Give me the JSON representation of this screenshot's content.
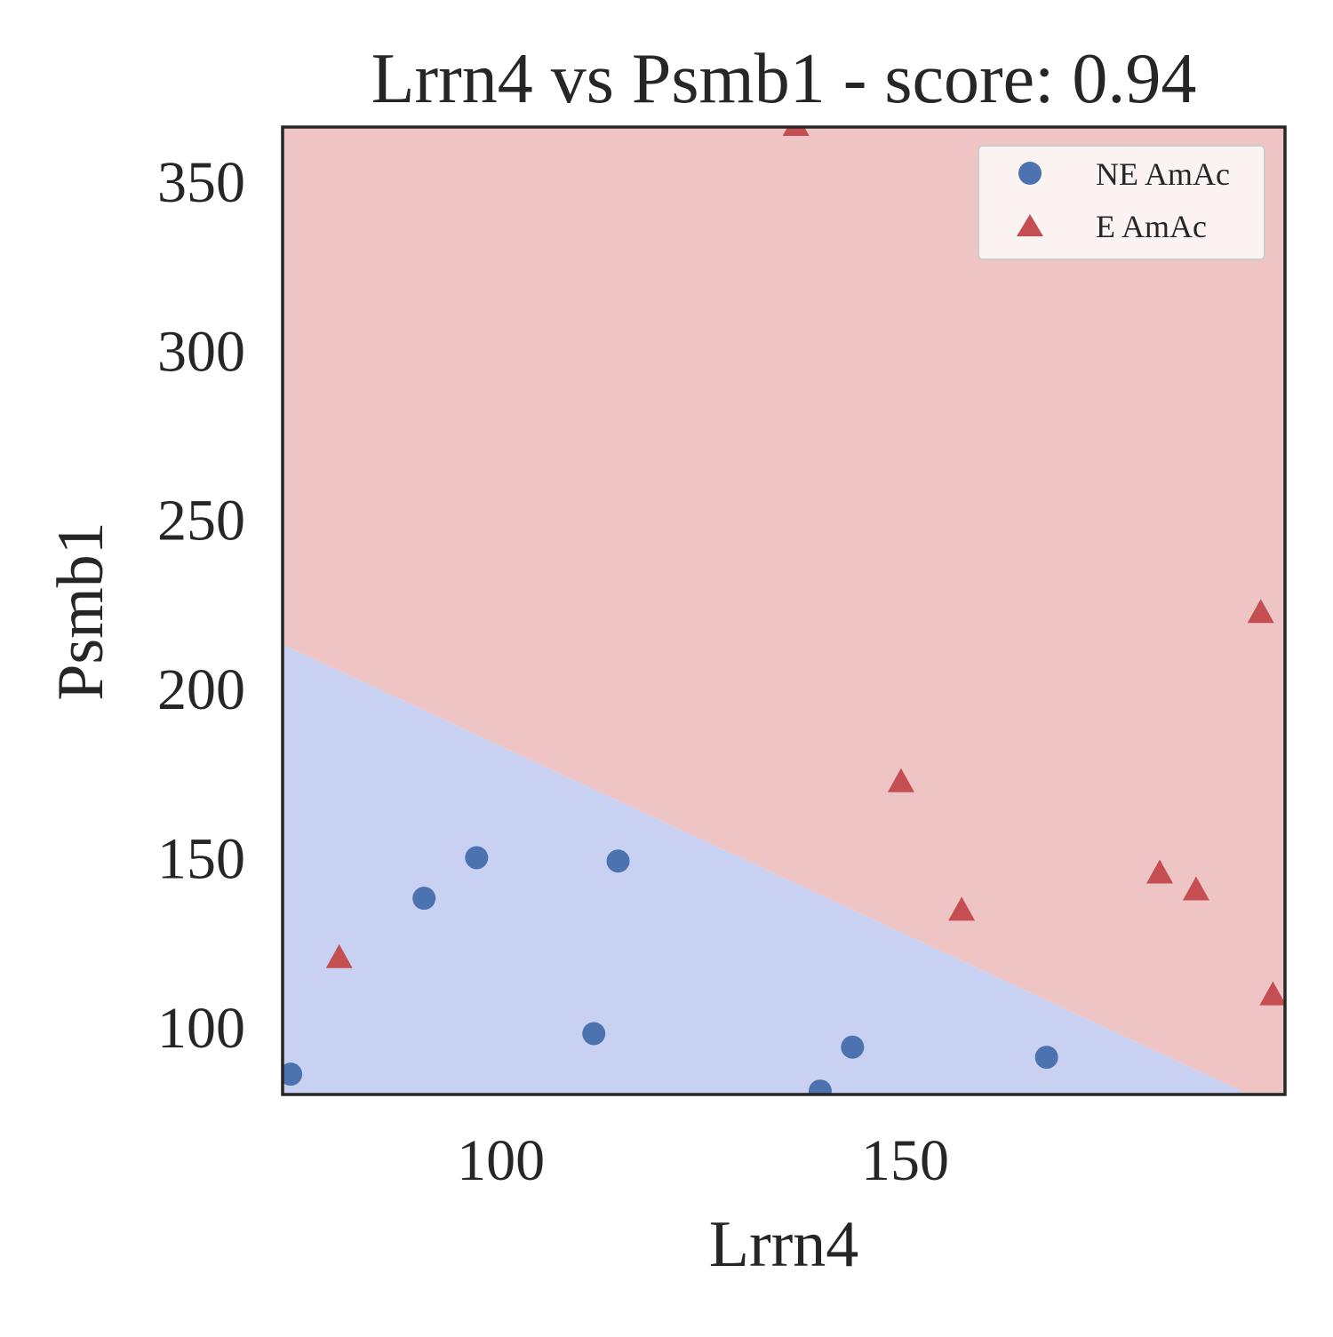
{
  "chart_data": {
    "type": "scatter",
    "title": "Lrrn4 vs Psmb1 - score: 0.94",
    "xlabel": "Lrrn4",
    "ylabel": "Psmb1",
    "xlim": [
      73,
      197
    ],
    "ylim": [
      80,
      366
    ],
    "xticks": [
      100,
      150
    ],
    "yticks": [
      100,
      150,
      200,
      250,
      300,
      350
    ],
    "grid": false,
    "legend_position": "top-right",
    "decision_boundary": {
      "x": [
        73,
        197
      ],
      "y": [
        213,
        75
      ]
    },
    "regions": [
      {
        "name": "NE AmAc",
        "color": "#c9d1f2"
      },
      {
        "name": "E AmAc",
        "color": "#eec5c4"
      }
    ],
    "series": [
      {
        "name": "NE AmAc",
        "marker": "circle",
        "color": "#4c72b0",
        "points": [
          [
            74,
            86
          ],
          [
            90.5,
            138
          ],
          [
            97,
            150
          ],
          [
            111.5,
            98
          ],
          [
            114.5,
            149
          ],
          [
            139.5,
            81
          ],
          [
            143.5,
            94
          ],
          [
            167.5,
            91
          ]
        ]
      },
      {
        "name": "E AmAc",
        "marker": "triangle",
        "color": "#c44e52",
        "points": [
          [
            80,
            120
          ],
          [
            136.5,
            366
          ],
          [
            149.5,
            172
          ],
          [
            157,
            134
          ],
          [
            181.5,
            145
          ],
          [
            186,
            140
          ],
          [
            194,
            222
          ],
          [
            195.5,
            109
          ]
        ]
      }
    ]
  }
}
